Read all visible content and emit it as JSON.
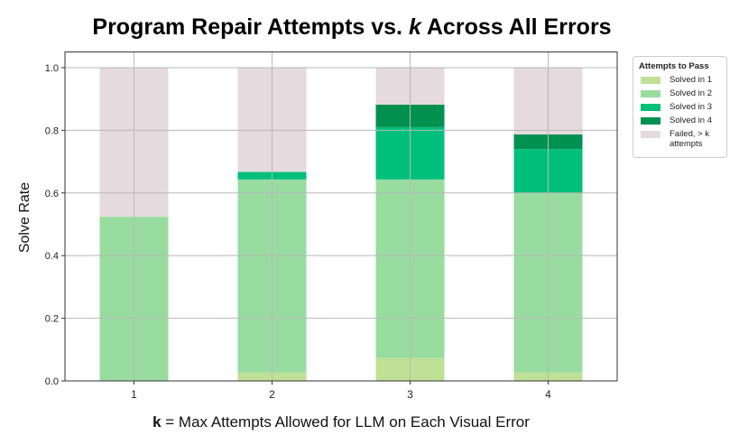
{
  "chart_data": {
    "type": "bar",
    "stacked": true,
    "title_parts": [
      "Program Repair Attempts vs. ",
      "k",
      " Across All Errors"
    ],
    "xlabel_parts": [
      "k",
      " = Max Attempts Allowed for LLM on Each Visual Error"
    ],
    "ylabel": "Solve Rate",
    "categories": [
      "1",
      "2",
      "3",
      "4"
    ],
    "ylim": [
      0,
      1.05
    ],
    "yticks": [
      "0.0",
      "0.2",
      "0.4",
      "0.6",
      "0.8",
      "1.0"
    ],
    "grid": true,
    "legend": {
      "title": "Attempts to Pass",
      "placement": "outside-right"
    },
    "series": [
      {
        "name": "Solved in 1",
        "color": "#bfe196",
        "values": [
          0,
          0.027,
          0.073,
          0.027
        ]
      },
      {
        "name": "Solved in 2",
        "color": "#98dca0",
        "values": [
          0.524,
          0.616,
          0.57,
          0.573
        ]
      },
      {
        "name": "Solved in 3",
        "color": "#00bf7a",
        "values": [
          0,
          0.024,
          0.167,
          0.14
        ]
      },
      {
        "name": "Solved in 4",
        "color": "#009150",
        "values": [
          0,
          0,
          0.072,
          0.047
        ]
      },
      {
        "name": "Failed, > k attempts",
        "color": "#e5dadd",
        "values": [
          0.476,
          0.333,
          0.118,
          0.213
        ]
      }
    ]
  }
}
